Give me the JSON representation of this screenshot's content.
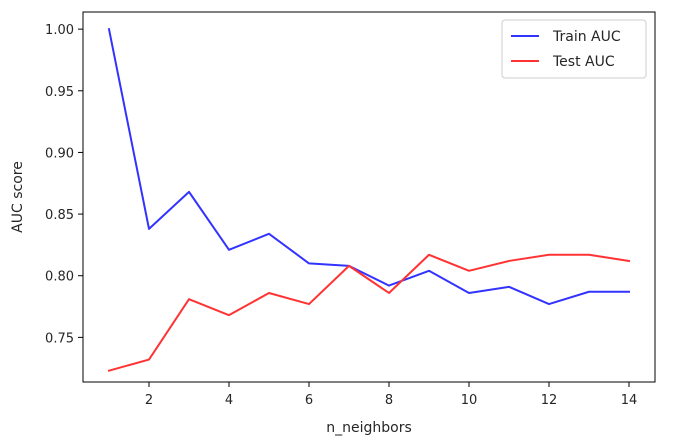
{
  "chart_data": {
    "type": "line",
    "title": "",
    "xlabel": "n_neighbors",
    "ylabel": "AUC score",
    "x": [
      1,
      2,
      3,
      4,
      5,
      6,
      7,
      8,
      9,
      10,
      11,
      12,
      13,
      14
    ],
    "series": [
      {
        "name": "Train AUC",
        "color": "#3333ff",
        "values": [
          1.0,
          0.838,
          0.868,
          0.821,
          0.834,
          0.81,
          0.808,
          0.792,
          0.804,
          0.786,
          0.791,
          0.777,
          0.787,
          0.787
        ]
      },
      {
        "name": "Test AUC",
        "color": "#ff3333",
        "values": [
          0.723,
          0.732,
          0.781,
          0.768,
          0.786,
          0.777,
          0.808,
          0.786,
          0.817,
          0.804,
          0.812,
          0.817,
          0.817,
          0.812
        ]
      }
    ],
    "xlim": [
      0.35,
      14.65
    ],
    "ylim": [
      0.7138,
      1.0139
    ],
    "xticks": [
      2,
      4,
      6,
      8,
      10,
      12,
      14
    ],
    "xtick_labels": [
      "2",
      "4",
      "6",
      "8",
      "10",
      "12",
      "14"
    ],
    "yticks": [
      0.75,
      0.8,
      0.85,
      0.9,
      0.95,
      1.0
    ],
    "ytick_labels": [
      "0.75",
      "0.80",
      "0.85",
      "0.90",
      "0.95",
      "1.00"
    ],
    "grid": false,
    "legend_position": "top-right"
  }
}
